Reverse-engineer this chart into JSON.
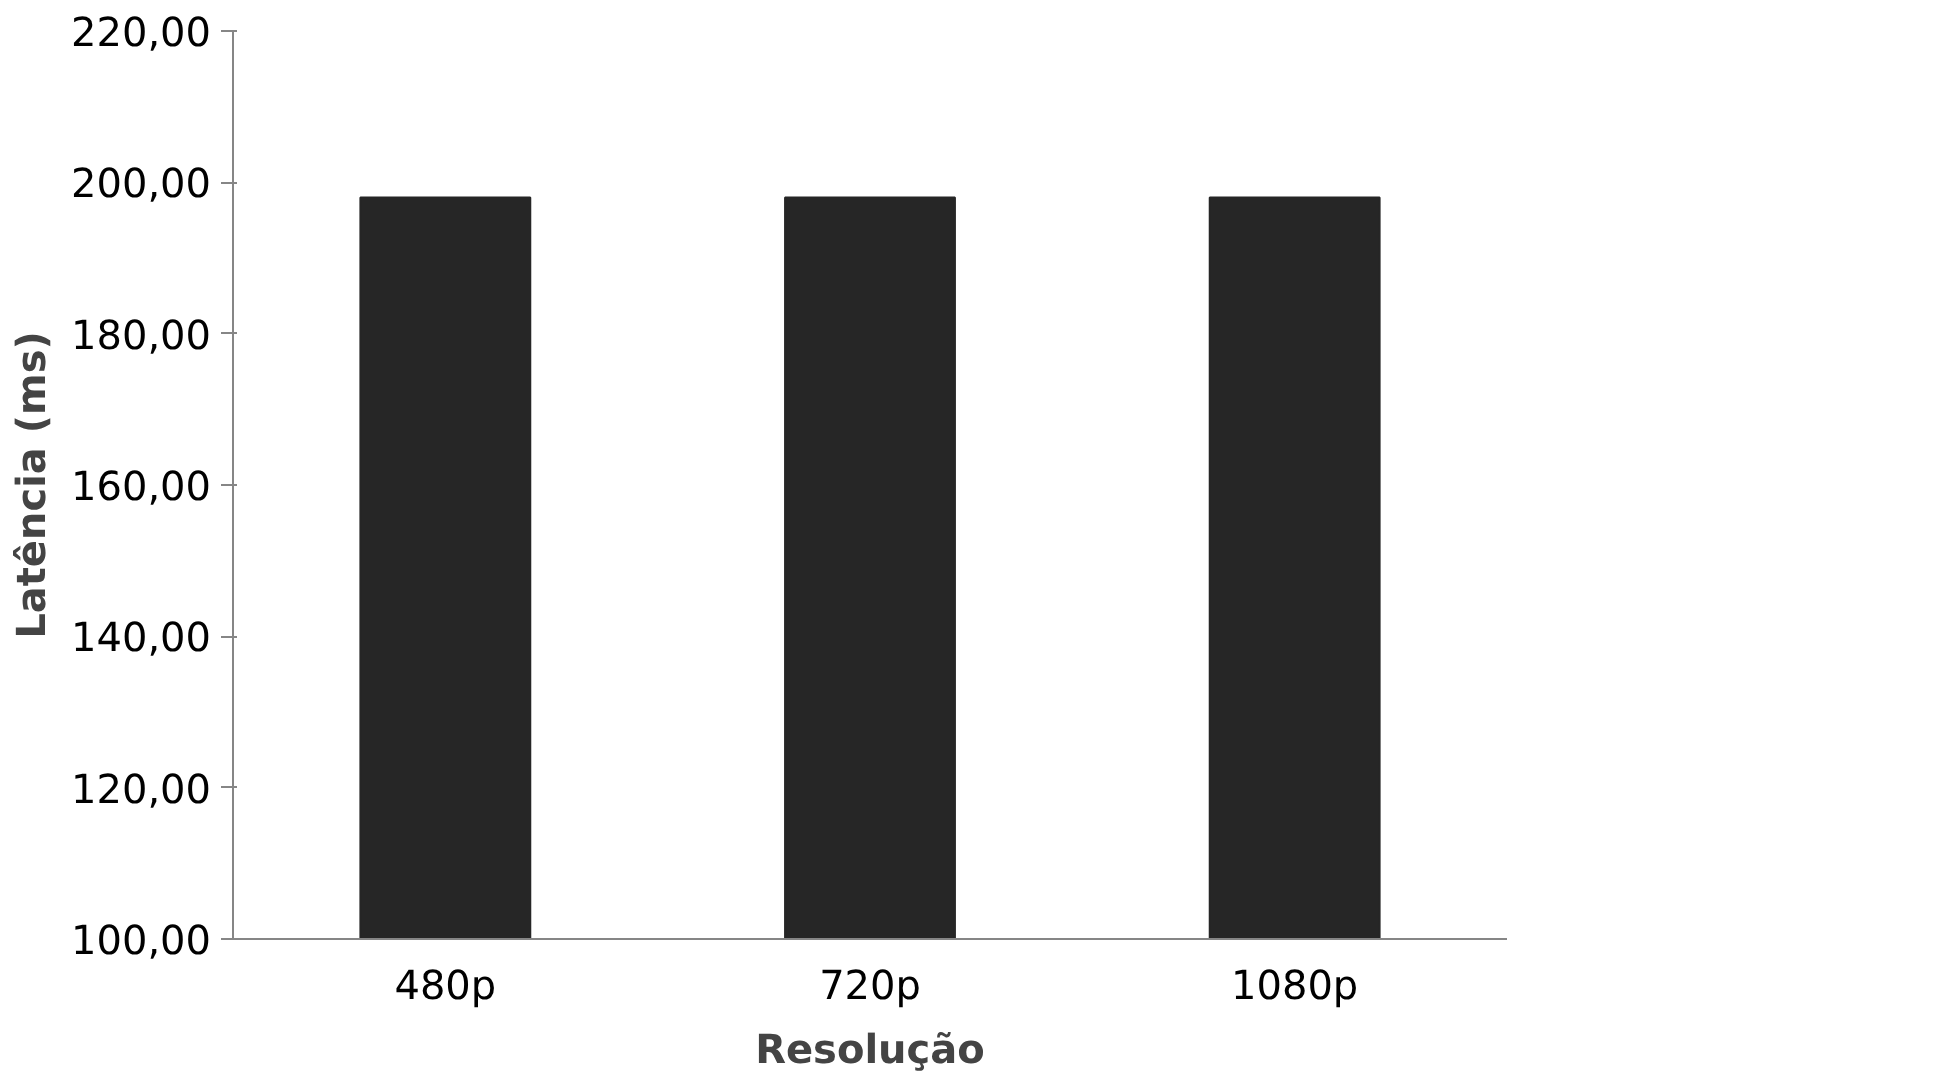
{
  "chart_data": {
    "type": "bar",
    "xlabel": "Resolução",
    "ylabel": "Latência (ms)",
    "categories": [
      "480p",
      "720p",
      "1080p"
    ],
    "series": [
      {
        "color": "#262626",
        "values": [
          198,
          198,
          198
        ]
      }
    ],
    "ylim": [
      100,
      220
    ],
    "yticks": [
      {
        "value": 100,
        "label": "100,00"
      },
      {
        "value": 120,
        "label": "120,00"
      },
      {
        "value": 140,
        "label": "140,00"
      },
      {
        "value": 160,
        "label": "160,00"
      },
      {
        "value": 180,
        "label": "180,00"
      },
      {
        "value": 200,
        "label": "200,00"
      },
      {
        "value": 220,
        "label": "220,00"
      }
    ],
    "grid": false
  }
}
